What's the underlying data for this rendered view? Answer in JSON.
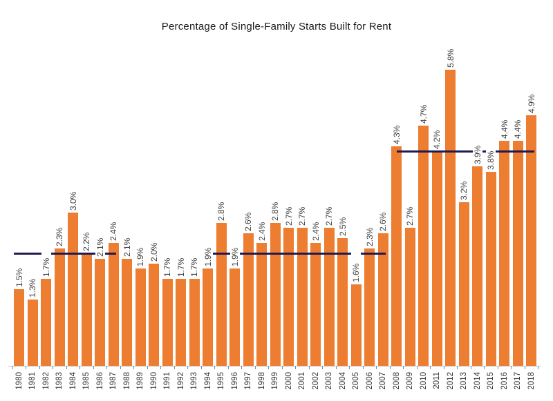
{
  "title": "Percentage of Single-Family Starts Built for Rent",
  "chart_data": {
    "type": "bar",
    "title": "Percentage of Single-Family Starts Built for Rent",
    "categories": [
      "1980",
      "1981",
      "1982",
      "1983",
      "1984",
      "1985",
      "1986",
      "1987",
      "1988",
      "1989",
      "1990",
      "1991",
      "1992",
      "1993",
      "1994",
      "1995",
      "1996",
      "1997",
      "1998",
      "1999",
      "2000",
      "2001",
      "2002",
      "2003",
      "2004",
      "2005",
      "2006",
      "2007",
      "2008",
      "2009",
      "2010",
      "2011",
      "2012",
      "2013",
      "2014",
      "2015",
      "2016",
      "2017",
      "2018"
    ],
    "values": [
      1.5,
      1.3,
      1.7,
      2.3,
      3.0,
      2.2,
      2.1,
      2.4,
      2.1,
      1.9,
      2.0,
      1.7,
      1.7,
      1.7,
      1.9,
      2.8,
      1.9,
      2.6,
      2.4,
      2.8,
      2.7,
      2.7,
      2.4,
      2.7,
      2.5,
      1.6,
      2.3,
      2.6,
      4.3,
      2.7,
      4.7,
      4.2,
      5.8,
      3.2,
      3.9,
      3.8,
      4.4,
      4.4,
      4.9
    ],
    "value_labels": [
      "1.5%",
      "1.3%",
      "1.7%",
      "2.3%",
      "3.0%",
      "2.2%",
      "2.1%",
      "2.4%",
      "2.1%",
      "1.9%",
      "2.0%",
      "1.7%",
      "1.7%",
      "1.7%",
      "1.9%",
      "2.8%",
      "1.9%",
      "2.6%",
      "2.4%",
      "2.8%",
      "2.7%",
      "2.7%",
      "2.4%",
      "2.7%",
      "2.5%",
      "1.6%",
      "2.3%",
      "2.6%",
      "4.3%",
      "2.7%",
      "4.7%",
      "4.2%",
      "5.8%",
      "3.2%",
      "3.9%",
      "3.8%",
      "4.4%",
      "4.4%",
      "4.9%"
    ],
    "reference_lines": [
      {
        "from_year": "1980",
        "to_year": "1987",
        "value_pct": 2.2,
        "start_anchor": "bar-left"
      },
      {
        "from_year": "1994",
        "to_year": "2007",
        "value_pct": 2.2,
        "start_anchor": "bar-center"
      },
      {
        "from_year": "2008",
        "to_year": "2018",
        "value_pct": 4.2,
        "start_anchor": "bar-center"
      }
    ],
    "xlabel": "",
    "ylabel": "",
    "ylim": [
      0,
      6.3
    ],
    "grid": false,
    "legend_position": "none",
    "value_label_rotation_deg": -90,
    "xtick_rotation_deg": -90,
    "colors": {
      "bar": "#ED7D31",
      "reference_line": "#1F1A52",
      "value_label_text": "#404040",
      "year_label_text": "#333333",
      "title_text": "#1a1a1a",
      "axis_line": "#BFBFBF",
      "tick_mark": "#8C8C8C",
      "background": "#FFFFFF"
    }
  }
}
